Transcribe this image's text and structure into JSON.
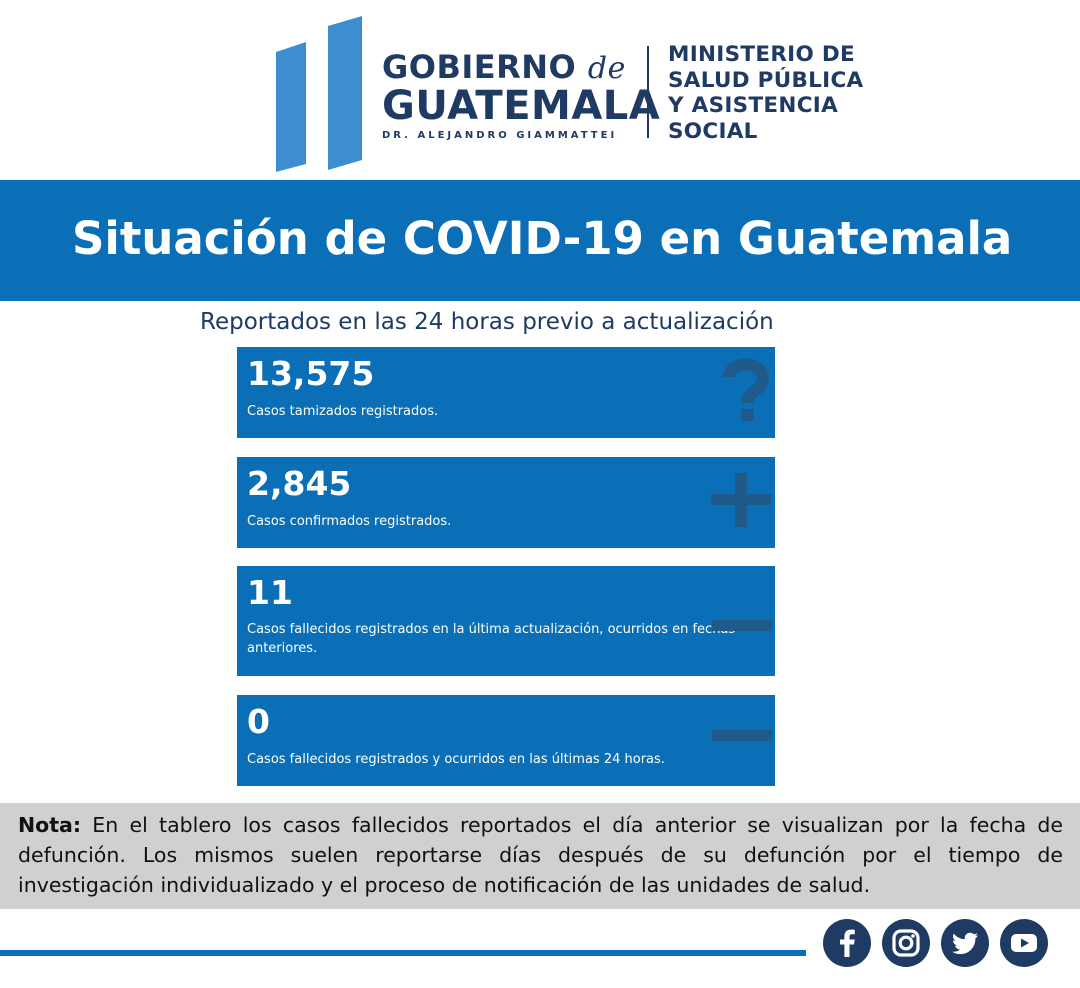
{
  "header": {
    "gobierno_line1": "GOBIERNO",
    "gobierno_de": "de",
    "gobierno_line2": "GUATEMALA",
    "gobierno_line3": "DR. ALEJANDRO GIAMMATTEI",
    "ministerio_lines": [
      "MINISTERIO DE",
      "SALUD PÚBLICA",
      "Y ASISTENCIA",
      "SOCIAL"
    ]
  },
  "title": "Situación de COVID-19 en Guatemala",
  "subtitle": "Reportados en las 24 horas previo a actualización",
  "cards": [
    {
      "value": "13,575",
      "label": "Casos tamizados registrados.",
      "icon": "question-icon"
    },
    {
      "value": "2,845",
      "label": "Casos confirmados registrados.",
      "icon": "plus-icon"
    },
    {
      "value": "11",
      "label": "Casos fallecidos registrados en la última actualización, ocurridos en fechas anteriores.",
      "icon": "minus-icon"
    },
    {
      "value": "0",
      "label": "Casos fallecidos registrados y ocurridos en las últimas 24 horas.",
      "icon": "minus-icon"
    }
  ],
  "note": {
    "prefix": "Nota:",
    "text": " En el tablero los casos fallecidos reportados el día anterior se visualizan por la fecha de defunción. Los mismos suelen reportarse días después de su defunción por el tiempo de investigación individualizado y el proceso de notificación de las unidades de salud."
  },
  "social": [
    "facebook-icon",
    "instagram-icon",
    "twitter-icon",
    "youtube-icon"
  ],
  "colors": {
    "brand_blue": "#0a6fb6",
    "navy": "#1f3a63",
    "logo_light_blue": "#3d8ed0",
    "note_gray": "#d0d0d0",
    "icon_dark": "#1f5a8a"
  }
}
